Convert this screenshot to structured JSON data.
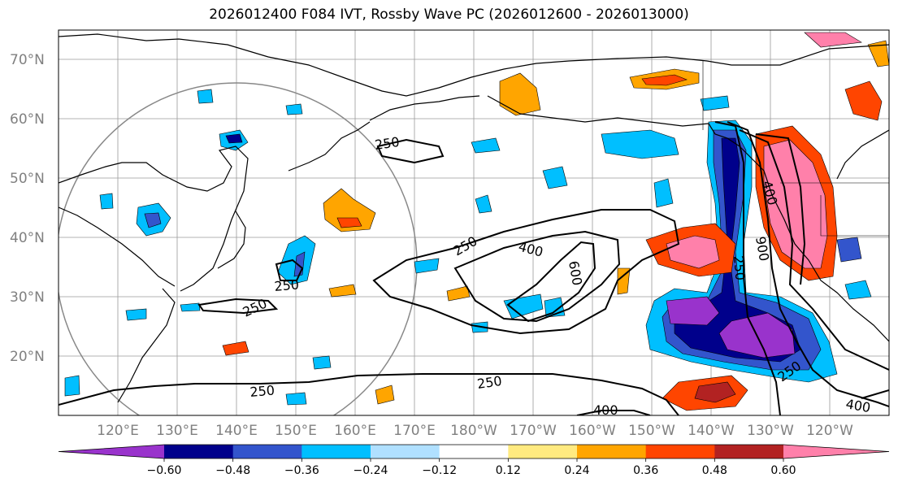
{
  "title": "2026012400 F084 IVT, Rossby Wave PC (2026012600 - 2026013000)",
  "lat_labels": [
    "70°N",
    "60°N",
    "50°N",
    "40°N",
    "30°N",
    "20°N"
  ],
  "lon_labels": [
    "120°E",
    "130°E",
    "140°E",
    "150°E",
    "160°E",
    "170°E",
    "180°W",
    "170°W",
    "160°W",
    "150°W",
    "140°W",
    "130°W",
    "120°W"
  ],
  "contour_labels": [
    "250",
    "400",
    "600",
    "250",
    "250",
    "250",
    "250",
    "400",
    "900",
    "250",
    "250",
    "400",
    "250",
    "400"
  ],
  "colorbar": {
    "colors": [
      "#9933cc",
      "#00008b",
      "#3355cc",
      "#00bfff",
      "#b0e0ff",
      "#ffffff",
      "#ffea80",
      "#ffa500",
      "#ff4500",
      "#b22222",
      "#ff80aa"
    ],
    "ticks": [
      "−0.60",
      "−0.48",
      "−0.36",
      "−0.24",
      "−0.12",
      "0.12",
      "0.24",
      "0.36",
      "0.48",
      "0.60"
    ]
  }
}
